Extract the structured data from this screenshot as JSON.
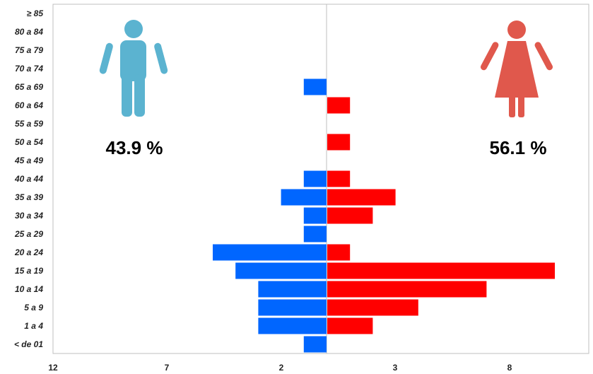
{
  "chart_data": {
    "type": "bar",
    "orientation": "horizontal-population-pyramid",
    "categories": [
      "< de 01",
      "1 a 4",
      "5 a 9",
      "10 a 14",
      "15 a 19",
      "20 a 24",
      "25 a 29",
      "30 a 34",
      "35 a 39",
      "40 a 44",
      "45 a 49",
      "50 a 54",
      "55 a 59",
      "60 a 64",
      "65 a 69",
      "70 a 74",
      "75 a 79",
      "80 a 84",
      "≥ 85"
    ],
    "series": [
      {
        "values": [
          1,
          3,
          3,
          3,
          4,
          5,
          1,
          1,
          2,
          1,
          0,
          0,
          0,
          0,
          1,
          0,
          0,
          0,
          0
        ],
        "color": "#0066ff"
      },
      {
        "values": [
          0,
          2,
          4,
          7,
          10,
          1,
          0,
          2,
          3,
          1,
          0,
          1,
          0,
          1,
          0,
          0,
          0,
          0,
          0
        ],
        "color": "#ff0000"
      }
    ],
    "xticks": [
      "12",
      "7",
      "2",
      "3",
      "8"
    ],
    "xlim": [
      -12,
      12
    ],
    "grid": false,
    "legend": "none",
    "annotations": [
      {
        "text": "43.9 %",
        "side": "left",
        "icon": "male-person-icon",
        "color": "#5bb3d0"
      },
      {
        "text": "56.1 %",
        "side": "right",
        "icon": "female-person-icon",
        "color": "#e0584c"
      }
    ]
  }
}
